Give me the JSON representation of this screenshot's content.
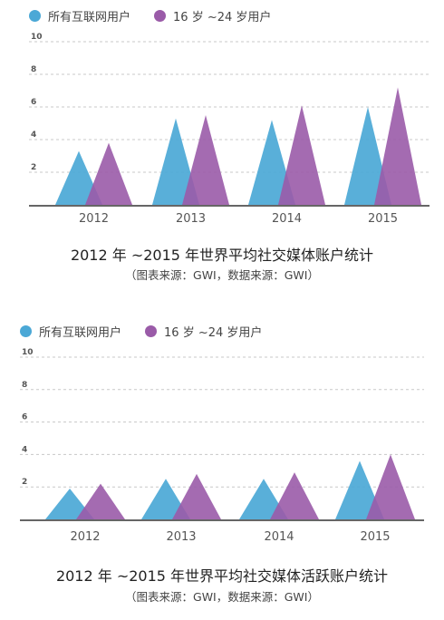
{
  "chart_data": [
    {
      "type": "area",
      "chart_shape": "triangle",
      "categories": [
        "2012",
        "2013",
        "2014",
        "2015"
      ],
      "yticks": [
        "2",
        "4",
        "6",
        "8",
        "10"
      ],
      "ylim": [
        0,
        10
      ],
      "series": [
        {
          "name": "所有互联网用户",
          "values": [
            3.3,
            5.3,
            5.2,
            6.0
          ]
        },
        {
          "name": "16 岁 ~24 岁用户",
          "values": [
            3.8,
            5.5,
            6.1,
            7.2
          ]
        }
      ],
      "title": "2012 年 ~2015 年世界平均社交媒体账户统计",
      "source": "（图表来源：GWI，数据来源：GWI）",
      "grid": true,
      "legend_position": "top-left"
    },
    {
      "type": "area",
      "chart_shape": "triangle",
      "categories": [
        "2012",
        "2013",
        "2014",
        "2015"
      ],
      "yticks": [
        "2",
        "4",
        "6",
        "8",
        "10"
      ],
      "ylim": [
        0,
        10
      ],
      "series": [
        {
          "name": "所有互联网用户",
          "values": [
            1.9,
            2.5,
            2.5,
            3.6
          ]
        },
        {
          "name": "16 岁 ~24 岁用户",
          "values": [
            2.2,
            2.8,
            2.9,
            4.0
          ]
        }
      ],
      "title": "2012 年 ~2015 年世界平均社交媒体活跃账户统计",
      "source": "（图表来源：GWI，数据来源：GWI）",
      "grid": true,
      "legend_position": "top-left"
    }
  ],
  "colors": {
    "all_users": "#4ba8d6",
    "young_users": "#9a5ba8",
    "grid": "#c8c8c8",
    "axis": "#333333",
    "tick": "#555555"
  }
}
